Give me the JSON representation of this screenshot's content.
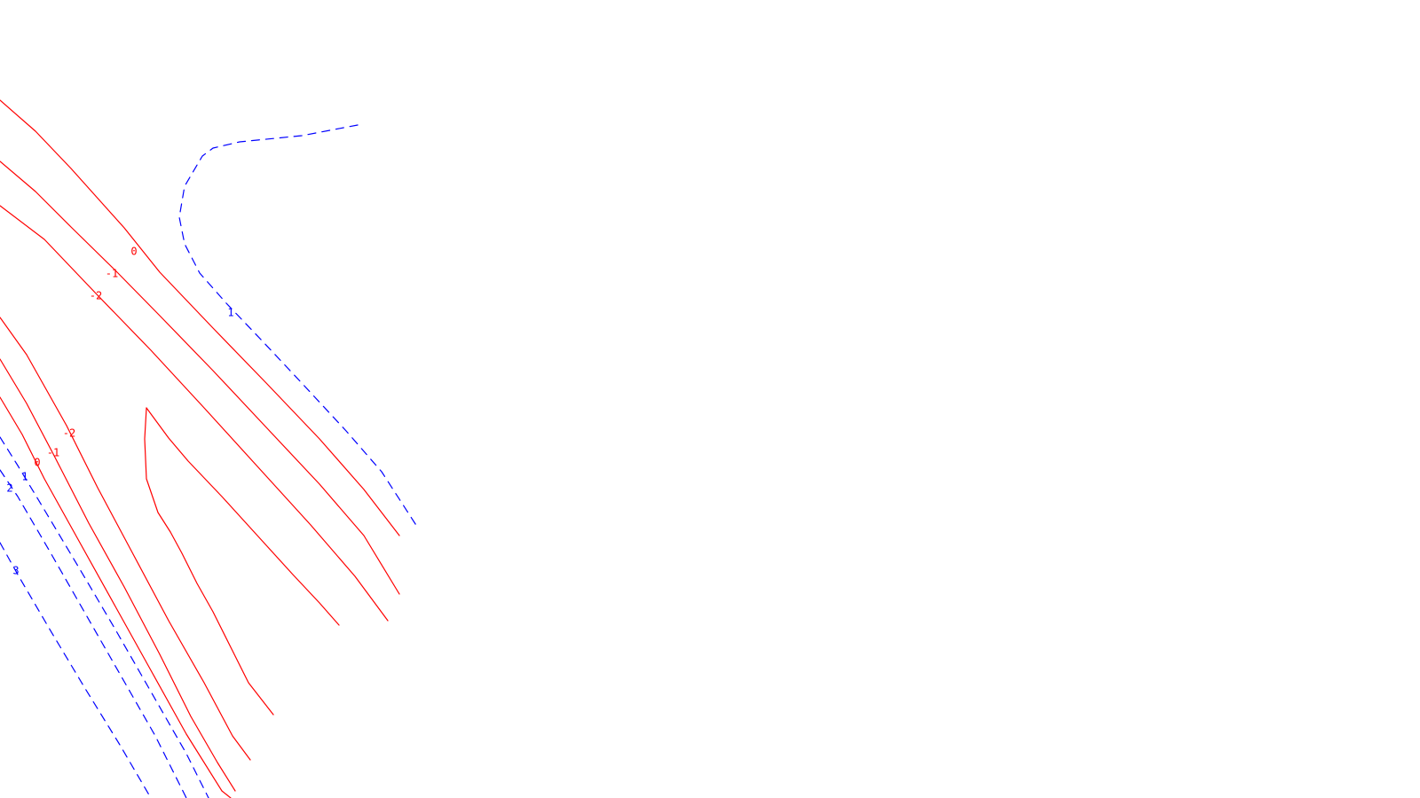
{
  "chart_data": {
    "type": "contour",
    "title": "",
    "xlabel": "",
    "ylabel": "",
    "grid": false,
    "legend": "none",
    "colors": {
      "negative_and_zero": "#ff0000",
      "positive": "#0000ff"
    },
    "line_styles": {
      "negative_and_zero": "solid",
      "positive": "dashed"
    },
    "contour_levels": [
      {
        "level": -2,
        "label": "-2",
        "style": "solid",
        "color": "#ff0000"
      },
      {
        "level": -1,
        "label": "-1",
        "style": "solid",
        "color": "#ff0000"
      },
      {
        "level": 0,
        "label": "0",
        "style": "solid",
        "color": "#ff0000"
      },
      {
        "level": 1,
        "label": "1",
        "style": "dashed",
        "color": "#0000ff"
      },
      {
        "level": 2,
        "label": "2",
        "style": "dashed",
        "color": "#0000ff"
      },
      {
        "level": 3,
        "label": "3",
        "style": "dashed",
        "color": "#0000ff"
      }
    ],
    "labeled_lines": [
      "0",
      "-1",
      "-2",
      "1",
      "-2",
      "-1",
      "0",
      "1",
      "2",
      "3"
    ]
  }
}
